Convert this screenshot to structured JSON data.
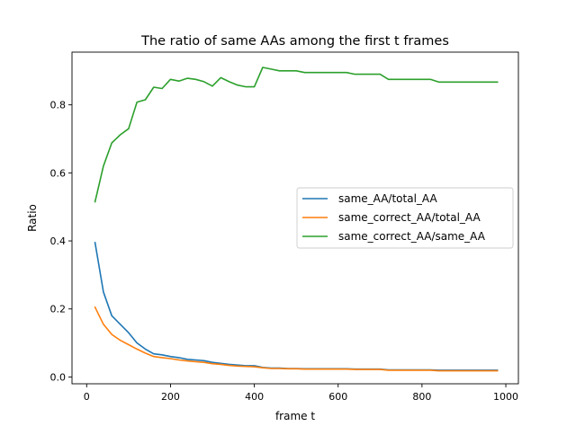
{
  "chart_data": {
    "type": "line",
    "title": "The ratio of same AAs among the first t frames",
    "xlabel": "frame t",
    "ylabel": "Ratio",
    "xlim": [
      -35,
      1030
    ],
    "ylim": [
      -0.02,
      0.955
    ],
    "xticks": [
      0,
      200,
      400,
      600,
      800,
      1000
    ],
    "yticks": [
      0.0,
      0.2,
      0.4,
      0.6,
      0.8
    ],
    "xtick_labels": [
      "0",
      "200",
      "400",
      "600",
      "800",
      "1000"
    ],
    "ytick_labels": [
      "0.0",
      "0.2",
      "0.4",
      "0.6",
      "0.8"
    ],
    "grid": false,
    "legend_position": "center-right",
    "x": [
      20,
      40,
      60,
      80,
      100,
      120,
      140,
      160,
      180,
      200,
      220,
      240,
      260,
      280,
      300,
      320,
      340,
      360,
      380,
      400,
      420,
      440,
      460,
      480,
      500,
      520,
      540,
      560,
      580,
      600,
      620,
      640,
      660,
      680,
      700,
      720,
      740,
      760,
      780,
      800,
      820,
      840,
      860,
      880,
      900,
      920,
      940,
      960,
      980
    ],
    "series": [
      {
        "name": "same_AA/total_AA",
        "color": "#1f77b4",
        "values": [
          0.395,
          0.25,
          0.18,
          0.155,
          0.13,
          0.1,
          0.082,
          0.068,
          0.065,
          0.06,
          0.057,
          0.052,
          0.05,
          0.048,
          0.043,
          0.04,
          0.037,
          0.035,
          0.033,
          0.033,
          0.028,
          0.026,
          0.026,
          0.025,
          0.025,
          0.024,
          0.024,
          0.024,
          0.024,
          0.024,
          0.024,
          0.023,
          0.023,
          0.023,
          0.023,
          0.021,
          0.021,
          0.021,
          0.021,
          0.021,
          0.021,
          0.02,
          0.02,
          0.02,
          0.02,
          0.02,
          0.02,
          0.02,
          0.02
        ]
      },
      {
        "name": "same_correct_AA/total_AA",
        "color": "#ff7f0e",
        "values": [
          0.205,
          0.155,
          0.125,
          0.108,
          0.095,
          0.082,
          0.07,
          0.06,
          0.057,
          0.054,
          0.05,
          0.047,
          0.045,
          0.043,
          0.039,
          0.037,
          0.034,
          0.032,
          0.031,
          0.03,
          0.027,
          0.025,
          0.025,
          0.024,
          0.024,
          0.023,
          0.023,
          0.023,
          0.023,
          0.023,
          0.023,
          0.022,
          0.022,
          0.022,
          0.022,
          0.02,
          0.02,
          0.02,
          0.02,
          0.02,
          0.02,
          0.018,
          0.018,
          0.018,
          0.018,
          0.018,
          0.018,
          0.018,
          0.018
        ]
      },
      {
        "name": "same_correct_AA/same_AA",
        "color": "#2ca02c",
        "values": [
          0.515,
          0.62,
          0.688,
          0.712,
          0.73,
          0.808,
          0.815,
          0.852,
          0.848,
          0.875,
          0.87,
          0.878,
          0.875,
          0.868,
          0.855,
          0.88,
          0.868,
          0.858,
          0.853,
          0.853,
          0.91,
          0.905,
          0.9,
          0.9,
          0.9,
          0.895,
          0.895,
          0.895,
          0.895,
          0.895,
          0.895,
          0.89,
          0.89,
          0.89,
          0.89,
          0.875,
          0.875,
          0.875,
          0.875,
          0.875,
          0.875,
          0.867,
          0.867,
          0.867,
          0.867,
          0.867,
          0.867,
          0.867,
          0.867
        ]
      }
    ]
  }
}
